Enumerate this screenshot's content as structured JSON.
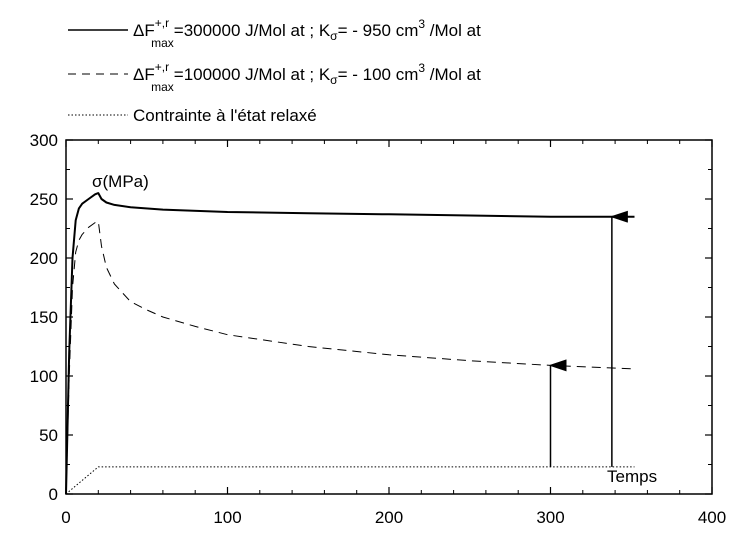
{
  "legend": [
    {
      "prefix": "ΔF",
      "sup": "+,r",
      "sub": "max",
      "rest": "=300000 J/Mol at ; K",
      "ksub": "σ",
      "rest2": "= - 950 cm",
      "unitsup": "3",
      "rest3": " /Mol at",
      "style": "solid"
    },
    {
      "prefix": "ΔF",
      "sup": "+,r",
      "sub": "max",
      "rest": "=100000 J/Mol at ; K",
      "ksub": "σ",
      "rest2": "= - 100 cm",
      "unitsup": "3",
      "rest3": " /Mol at",
      "style": "dashed"
    },
    {
      "label": "Contrainte à l'état relaxé",
      "style": "dotted"
    }
  ],
  "annotations": {
    "ylabel": "σ(MPa)",
    "xlabel": "Temps"
  },
  "chart_data": {
    "type": "line",
    "xlim": [
      0,
      400
    ],
    "ylim": [
      0,
      300
    ],
    "xticks": [
      0,
      100,
      200,
      300,
      400
    ],
    "yticks": [
      0,
      50,
      100,
      150,
      200,
      250,
      300
    ],
    "grid": false,
    "legend_placement": "top",
    "series": [
      {
        "name": "ΔF+,r max=300000 J/Mol at ; Kσ= - 950 cm3 /Mol at",
        "style": "solid",
        "x": [
          0,
          2,
          4,
          6,
          8,
          10,
          14,
          18,
          20,
          22,
          25,
          30,
          40,
          60,
          100,
          150,
          200,
          250,
          300,
          352
        ],
        "y": [
          0,
          120,
          200,
          232,
          242,
          246,
          250,
          254,
          255,
          250,
          247,
          245,
          243,
          241,
          239,
          238,
          237,
          236,
          235,
          235
        ]
      },
      {
        "name": "ΔF+,r max=100000 J/Mol at ; Kσ= - 100 cm3 /Mol at",
        "style": "dashed",
        "x": [
          0,
          2,
          4,
          6,
          8,
          10,
          14,
          18,
          20,
          22,
          25,
          30,
          40,
          50,
          60,
          80,
          100,
          150,
          200,
          250,
          300,
          352
        ],
        "y": [
          0,
          100,
          175,
          205,
          215,
          220,
          226,
          230,
          231,
          210,
          192,
          178,
          163,
          156,
          150,
          142,
          135,
          125,
          118,
          113,
          109,
          106
        ]
      },
      {
        "name": "Contrainte à l'état relaxé",
        "style": "dotted",
        "x": [
          0,
          20,
          352
        ],
        "y": [
          0,
          23,
          23
        ]
      }
    ],
    "arrows": [
      {
        "x": 300,
        "y_from": 23,
        "y_to": 109
      },
      {
        "x": 338,
        "y_from": 23,
        "y_to": 235
      }
    ]
  }
}
